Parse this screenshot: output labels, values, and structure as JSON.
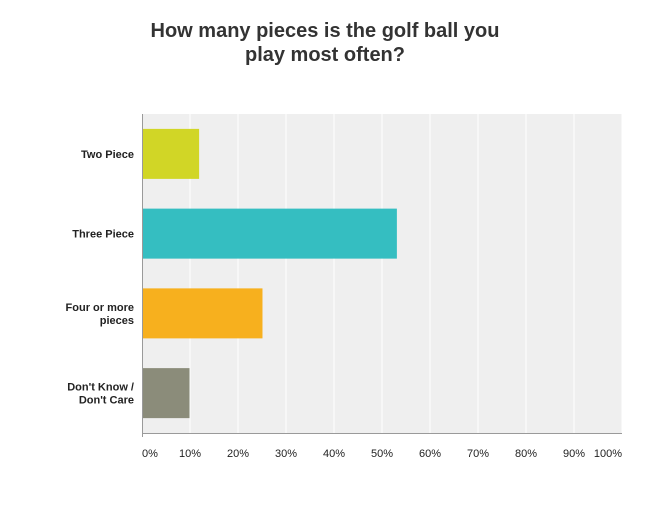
{
  "chart_data": {
    "type": "bar",
    "orientation": "horizontal",
    "title_lines": [
      "How many pieces is the golf ball you",
      "play most often?"
    ],
    "categories": [
      [
        "Two Piece"
      ],
      [
        "Three Piece"
      ],
      [
        "Four or more",
        "pieces"
      ],
      [
        "Don't Know /",
        "Don't Care"
      ]
    ],
    "values": [
      11.9,
      53.1,
      25.1,
      9.9
    ],
    "colors": [
      "#d1d626",
      "#35bec1",
      "#f7b01e",
      "#8b8c7a"
    ],
    "xlim": [
      0,
      100
    ],
    "x_ticks": [
      "0%",
      "10%",
      "20%",
      "30%",
      "40%",
      "50%",
      "60%",
      "70%",
      "80%",
      "90%",
      "100%"
    ],
    "grid": true,
    "plot_background": "#efefef",
    "grid_color": "#ffffff"
  }
}
